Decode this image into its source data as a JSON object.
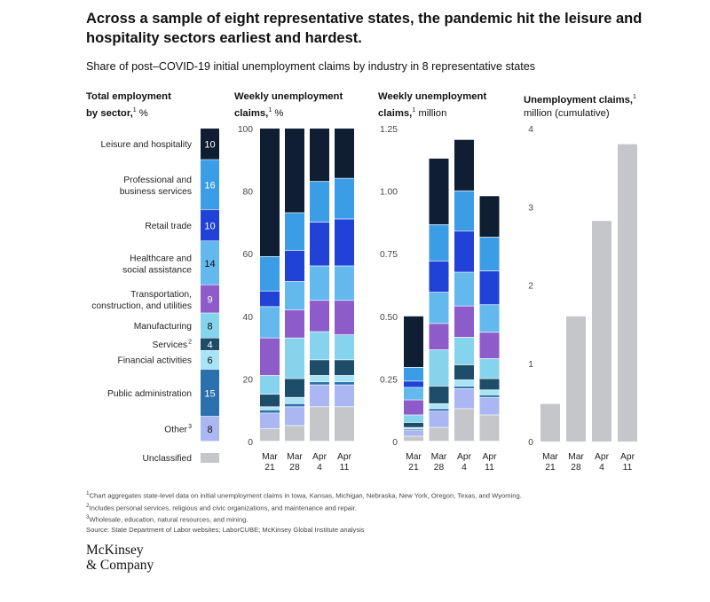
{
  "title": "Across a sample of eight representative states, the pandemic hit the leisure and hospitality sectors earliest and hardest.",
  "subtitle": "Share of post–COVID-19 initial unemployment claims by industry in 8 representative states",
  "colors": {
    "Leisure and hospitality": "#0f1e33",
    "Professional and business services": "#3a9de6",
    "Retail trade": "#2142d6",
    "Healthcare and social assistance": "#63b9ee",
    "Transportation, construction, and utilities": "#8e5bcb",
    "Manufacturing": "#86d3ee",
    "Services": "#1d4d69",
    "Financial activities": "#a9e4f6",
    "Public administration": "#2a71ad",
    "Other": "#aab7f2",
    "Unclassified": "#c4c6c9"
  },
  "panel_headers": {
    "p1": {
      "line1": "Total employment",
      "line2a": "by sector,",
      "sup": "1",
      "unit": " %"
    },
    "p2": {
      "line1": "Weekly unemployment",
      "line2a": "claims,",
      "sup": "1",
      "unit": " %"
    },
    "p3": {
      "line1": "Weekly unemployment",
      "line2a": "claims,",
      "sup": "1",
      "unit": " million"
    },
    "p4": {
      "line1": "Unemployment claims,",
      "sup": "1",
      "line2": "million (cumulative)"
    }
  },
  "chart_data": [
    {
      "type": "bar",
      "stacked": true,
      "title": "Total employment by sector, %",
      "sectors": [
        {
          "label": "Leisure and hospitality",
          "value": 10,
          "display": "10"
        },
        {
          "label": "Professional and business services",
          "value": 16,
          "display": "16"
        },
        {
          "label": "Retail trade",
          "value": 10,
          "display": "10"
        },
        {
          "label": "Healthcare and social assistance",
          "value": 14,
          "display": "14"
        },
        {
          "label": "Transportation, construction, and utilities",
          "value": 9,
          "display": "9"
        },
        {
          "label": "Manufacturing",
          "value": 8,
          "display": "8"
        },
        {
          "label": "Services",
          "label_sup": "2",
          "value": 4,
          "display": "4"
        },
        {
          "label": "Financial activities",
          "value": 6,
          "display": "6"
        },
        {
          "label": "Public administration",
          "value": 15,
          "display": "15"
        },
        {
          "label": "Other",
          "label_sup": "3",
          "value": 8,
          "display": "8"
        }
      ],
      "unclassified_label": "Unclassified"
    },
    {
      "type": "bar",
      "stacked": true,
      "title": "Weekly unemployment claims, %",
      "categories": [
        "Mar 21",
        "Mar 28",
        "Apr 4",
        "Apr 11"
      ],
      "ylim": [
        0,
        100
      ],
      "yticks": [
        0,
        20,
        40,
        60,
        80,
        100
      ],
      "series": [
        {
          "name": "Unclassified",
          "values": [
            4,
            5,
            11,
            11
          ]
        },
        {
          "name": "Other",
          "values": [
            5,
            6,
            7,
            7
          ]
        },
        {
          "name": "Public administration",
          "values": [
            1,
            1,
            1,
            1
          ]
        },
        {
          "name": "Financial activities",
          "values": [
            1,
            2,
            2,
            2
          ]
        },
        {
          "name": "Services",
          "values": [
            4,
            6,
            5,
            5
          ]
        },
        {
          "name": "Manufacturing",
          "values": [
            6,
            13,
            9,
            8
          ]
        },
        {
          "name": "Transportation, construction, and utilities",
          "values": [
            12,
            9,
            10,
            11
          ]
        },
        {
          "name": "Healthcare and social assistance",
          "values": [
            10,
            9,
            11,
            11
          ]
        },
        {
          "name": "Retail trade",
          "values": [
            5,
            10,
            14,
            15
          ]
        },
        {
          "name": "Professional and business services",
          "values": [
            11,
            12,
            13,
            13
          ]
        },
        {
          "name": "Leisure and hospitality",
          "values": [
            41,
            27,
            17,
            16
          ]
        }
      ]
    },
    {
      "type": "bar",
      "stacked": true,
      "title": "Weekly unemployment claims, million",
      "categories": [
        "Mar 21",
        "Mar 28",
        "Apr 4",
        "Apr 11"
      ],
      "ylim": [
        0,
        1.25
      ],
      "yticks": [
        0,
        0.25,
        0.5,
        0.75,
        1.0,
        1.25
      ],
      "ytick_labels": [
        "0",
        "0.25",
        "0.50",
        "0.75",
        "1.00",
        "1.25"
      ],
      "series": [
        {
          "name": "Unclassified",
          "values": [
            0.02,
            0.055,
            0.13,
            0.105
          ]
        },
        {
          "name": "Other",
          "values": [
            0.025,
            0.065,
            0.08,
            0.07
          ]
        },
        {
          "name": "Public administration",
          "values": [
            0.005,
            0.01,
            0.01,
            0.01
          ]
        },
        {
          "name": "Financial activities",
          "values": [
            0.005,
            0.02,
            0.025,
            0.02
          ]
        },
        {
          "name": "Services",
          "values": [
            0.02,
            0.07,
            0.06,
            0.045
          ]
        },
        {
          "name": "Manufacturing",
          "values": [
            0.03,
            0.145,
            0.11,
            0.08
          ]
        },
        {
          "name": "Transportation, construction, and utilities",
          "values": [
            0.06,
            0.105,
            0.125,
            0.105
          ]
        },
        {
          "name": "Healthcare and social assistance",
          "values": [
            0.05,
            0.125,
            0.135,
            0.11
          ]
        },
        {
          "name": "Retail trade",
          "values": [
            0.025,
            0.125,
            0.165,
            0.135
          ]
        },
        {
          "name": "Professional and business services",
          "values": [
            0.055,
            0.145,
            0.16,
            0.135
          ]
        },
        {
          "name": "Leisure and hospitality",
          "values": [
            0.205,
            0.265,
            0.205,
            0.165
          ]
        }
      ]
    },
    {
      "type": "bar",
      "title": "Unemployment claims, million (cumulative)",
      "categories": [
        "Mar 21",
        "Mar 28",
        "Apr 4",
        "Apr 11"
      ],
      "ylim": [
        0,
        4
      ],
      "yticks": [
        0,
        1,
        2,
        3,
        4
      ],
      "series": [
        {
          "name": "Unclassified",
          "values": [
            0.48,
            1.6,
            2.82,
            3.8
          ]
        }
      ]
    }
  ],
  "footnotes": [
    {
      "sup": "1",
      "text": "Chart aggregates state-level data on initial unemployment claims in Iowa, Kansas, Michigan, Nebraska, New York, Oregon, Texas, and Wyoming."
    },
    {
      "sup": "2",
      "text": "Includes personal services, religious and civic organizations, and maintenance and repair."
    },
    {
      "sup": "3",
      "text": "Wholesale, education, natural resources, and mining."
    }
  ],
  "source": "Source: State Department of Labor websites; LaborCUBE; McKinsey Global Institute analysis",
  "logo": {
    "line1": "McKinsey",
    "line2": "& Company"
  }
}
